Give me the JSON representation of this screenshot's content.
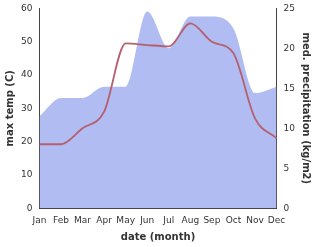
{
  "chart_data": {
    "type": "line",
    "xlabel": "date (month)",
    "ylabel": "max temp (C)",
    "y2label": "med. precipitation (kg/m2)",
    "categories": [
      "Jan",
      "Feb",
      "Mar",
      "Apr",
      "May",
      "Jun",
      "Jul",
      "Aug",
      "Sep",
      "Oct",
      "Nov",
      "Dec"
    ],
    "series": [
      {
        "type": "area",
        "axis": "y2",
        "color": "#b0bcf2",
        "values": [
          11.5,
          13.8,
          13.8,
          15.2,
          15.2,
          24.6,
          20,
          24,
          24,
          22.5,
          14.4,
          15.2
        ]
      },
      {
        "type": "line",
        "color": "#b5606e",
        "values": [
          19.2,
          19.2,
          24,
          29,
          49.5,
          49,
          48.6,
          55.5,
          50,
          46.5,
          27,
          21
        ]
      }
    ],
    "ylim": [
      0,
      60
    ],
    "yticks": [
      0,
      10,
      20,
      30,
      40,
      50,
      60
    ],
    "y2lim": [
      0,
      25
    ],
    "y2ticks": [
      0,
      5,
      10,
      15,
      20,
      25
    ],
    "grid": false
  }
}
